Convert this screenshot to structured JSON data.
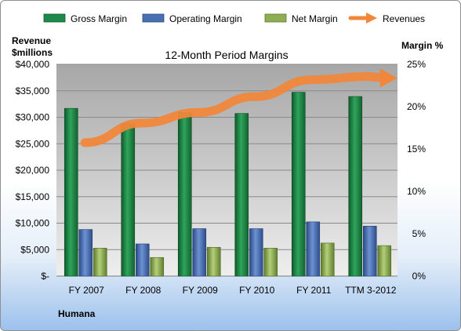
{
  "chart_data": {
    "type": "bar",
    "title": "12-Month Period Margins",
    "company": "Humana",
    "y_left_label_line1": "Revenue",
    "y_left_label_line2": "$millions",
    "y_right_label": "Margin %",
    "categories": [
      "FY 2007",
      "FY 2008",
      "FY 2009",
      "FY 2010",
      "FY 2011",
      "TTM 3-2012"
    ],
    "y_left": {
      "min": 0,
      "max": 40000,
      "step": 5000
    },
    "y_right": {
      "min": 0,
      "max": 25,
      "step": 5
    },
    "y_left_ticks": [
      "$-",
      "$5,000",
      "$10,000",
      "$15,000",
      "$20,000",
      "$25,000",
      "$30,000",
      "$35,000",
      "$40,000"
    ],
    "y_right_ticks": [
      "0%",
      "5%",
      "10%",
      "15%",
      "20%",
      "25%"
    ],
    "grid": true,
    "legend_position": "top",
    "series": [
      {
        "name": "Gross Margin",
        "axis": "right",
        "color": "#1e8a4a",
        "values": [
          19.8,
          18.0,
          19.3,
          19.2,
          21.7,
          21.2
        ]
      },
      {
        "name": "Operating Margin",
        "axis": "right",
        "color": "#4a6fb0",
        "values": [
          5.5,
          3.8,
          5.6,
          5.6,
          6.4,
          5.9
        ]
      },
      {
        "name": "Net Margin",
        "axis": "right",
        "color": "#8fae52",
        "values": [
          3.3,
          2.2,
          3.4,
          3.3,
          3.9,
          3.6
        ]
      },
      {
        "name": "Revenues",
        "axis": "left",
        "color": "#f0873a",
        "type": "line",
        "values": [
          25200,
          28900,
          30900,
          33900,
          37100,
          37700
        ]
      }
    ]
  }
}
